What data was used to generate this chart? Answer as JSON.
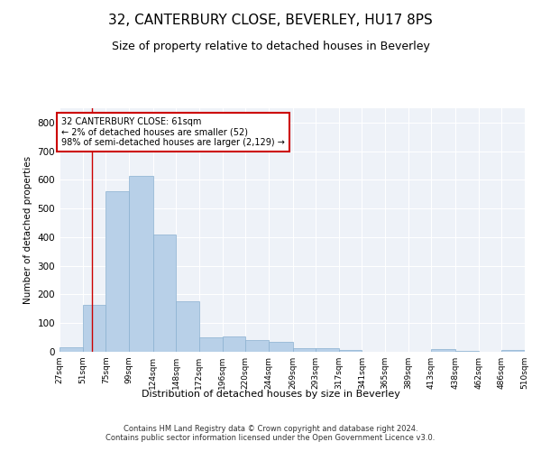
{
  "title": "32, CANTERBURY CLOSE, BEVERLEY, HU17 8PS",
  "subtitle": "Size of property relative to detached houses in Beverley",
  "xlabel": "Distribution of detached houses by size in Beverley",
  "ylabel": "Number of detached properties",
  "bar_color": "#b8d0e8",
  "bar_edge_color": "#8ab0d0",
  "background_color": "#eef2f8",
  "grid_color": "#ffffff",
  "redline_x": 61,
  "annotation_text": "32 CANTERBURY CLOSE: 61sqm\n← 2% of detached houses are smaller (52)\n98% of semi-detached houses are larger (2,129) →",
  "annotation_box_color": "#ffffff",
  "annotation_box_edge_color": "#cc0000",
  "bins": [
    27,
    51,
    75,
    99,
    124,
    148,
    172,
    196,
    220,
    244,
    269,
    293,
    317,
    341,
    365,
    389,
    413,
    438,
    462,
    486,
    510
  ],
  "values": [
    15,
    165,
    560,
    615,
    410,
    175,
    50,
    55,
    40,
    35,
    12,
    12,
    5,
    1,
    0,
    0,
    8,
    2,
    0,
    5
  ],
  "ylim": [
    0,
    850
  ],
  "yticks": [
    0,
    100,
    200,
    300,
    400,
    500,
    600,
    700,
    800
  ],
  "footer": "Contains HM Land Registry data © Crown copyright and database right 2024.\nContains public sector information licensed under the Open Government Licence v3.0.",
  "title_fontsize": 11,
  "subtitle_fontsize": 9,
  "footer_fontsize": 6
}
